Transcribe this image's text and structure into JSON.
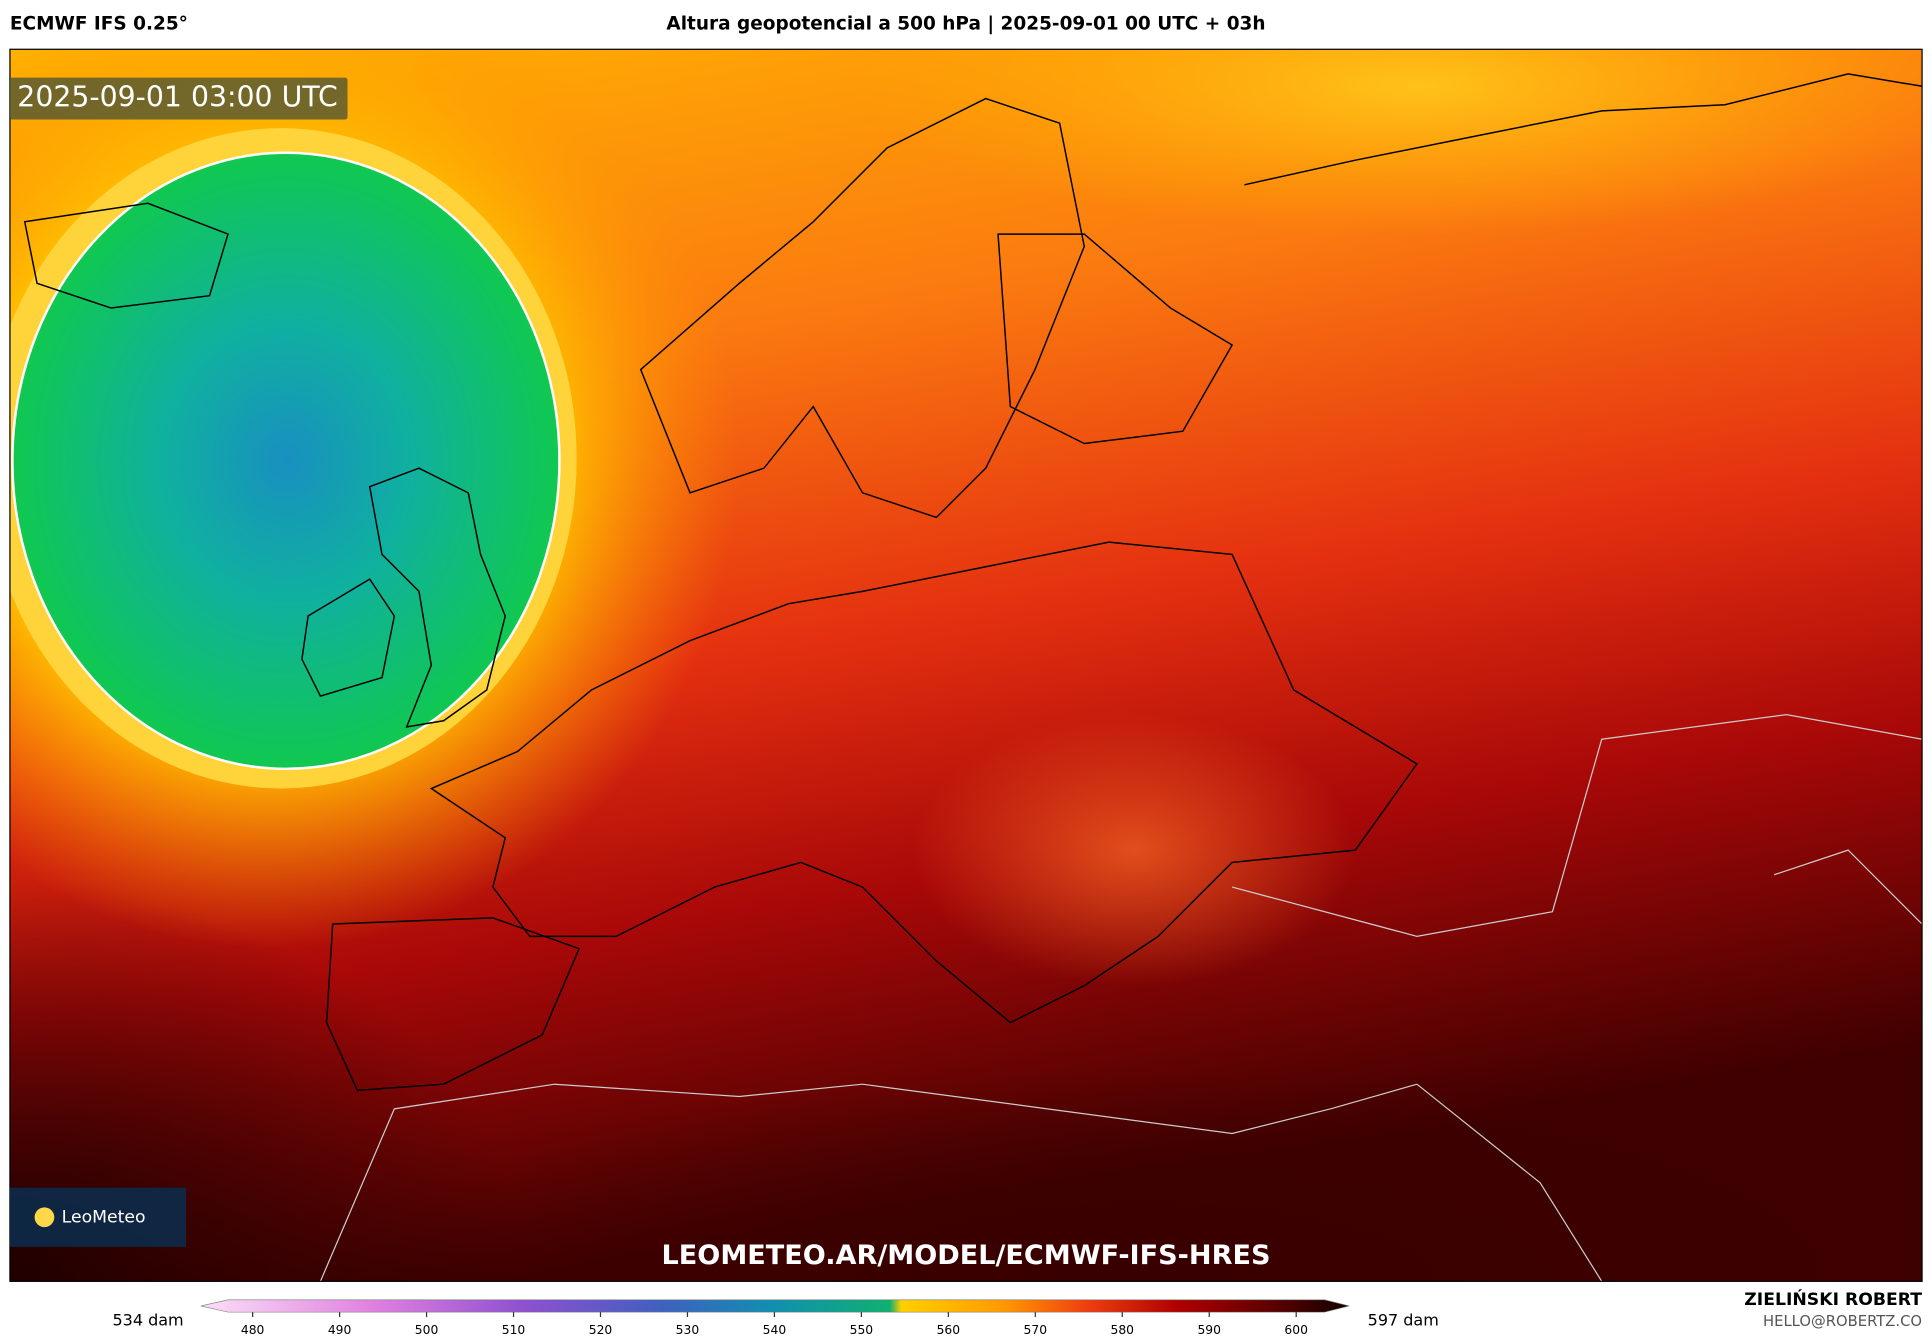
{
  "header": {
    "model": "ECMWF IFS 0.25°",
    "title": "Altura geopotencial a 500 hPa | 2025-09-01 00 UTC + 03h"
  },
  "map": {
    "timestamp": "2025-09-01 03:00 UTC",
    "logo": "LeoMeteo",
    "url": "LEOMETEO.AR/MODEL/ECMWF-IFS-HRES"
  },
  "colorbar": {
    "min_label": "534 dam",
    "max_label": "597 dam",
    "ticks": [
      "480",
      "490",
      "500",
      "510",
      "520",
      "530",
      "540",
      "550",
      "560",
      "570",
      "580",
      "590",
      "600"
    ]
  },
  "footer": {
    "author": "ZIELIŃSKI ROBERT",
    "email": "HELLO@ROBERTZ.CO"
  }
}
